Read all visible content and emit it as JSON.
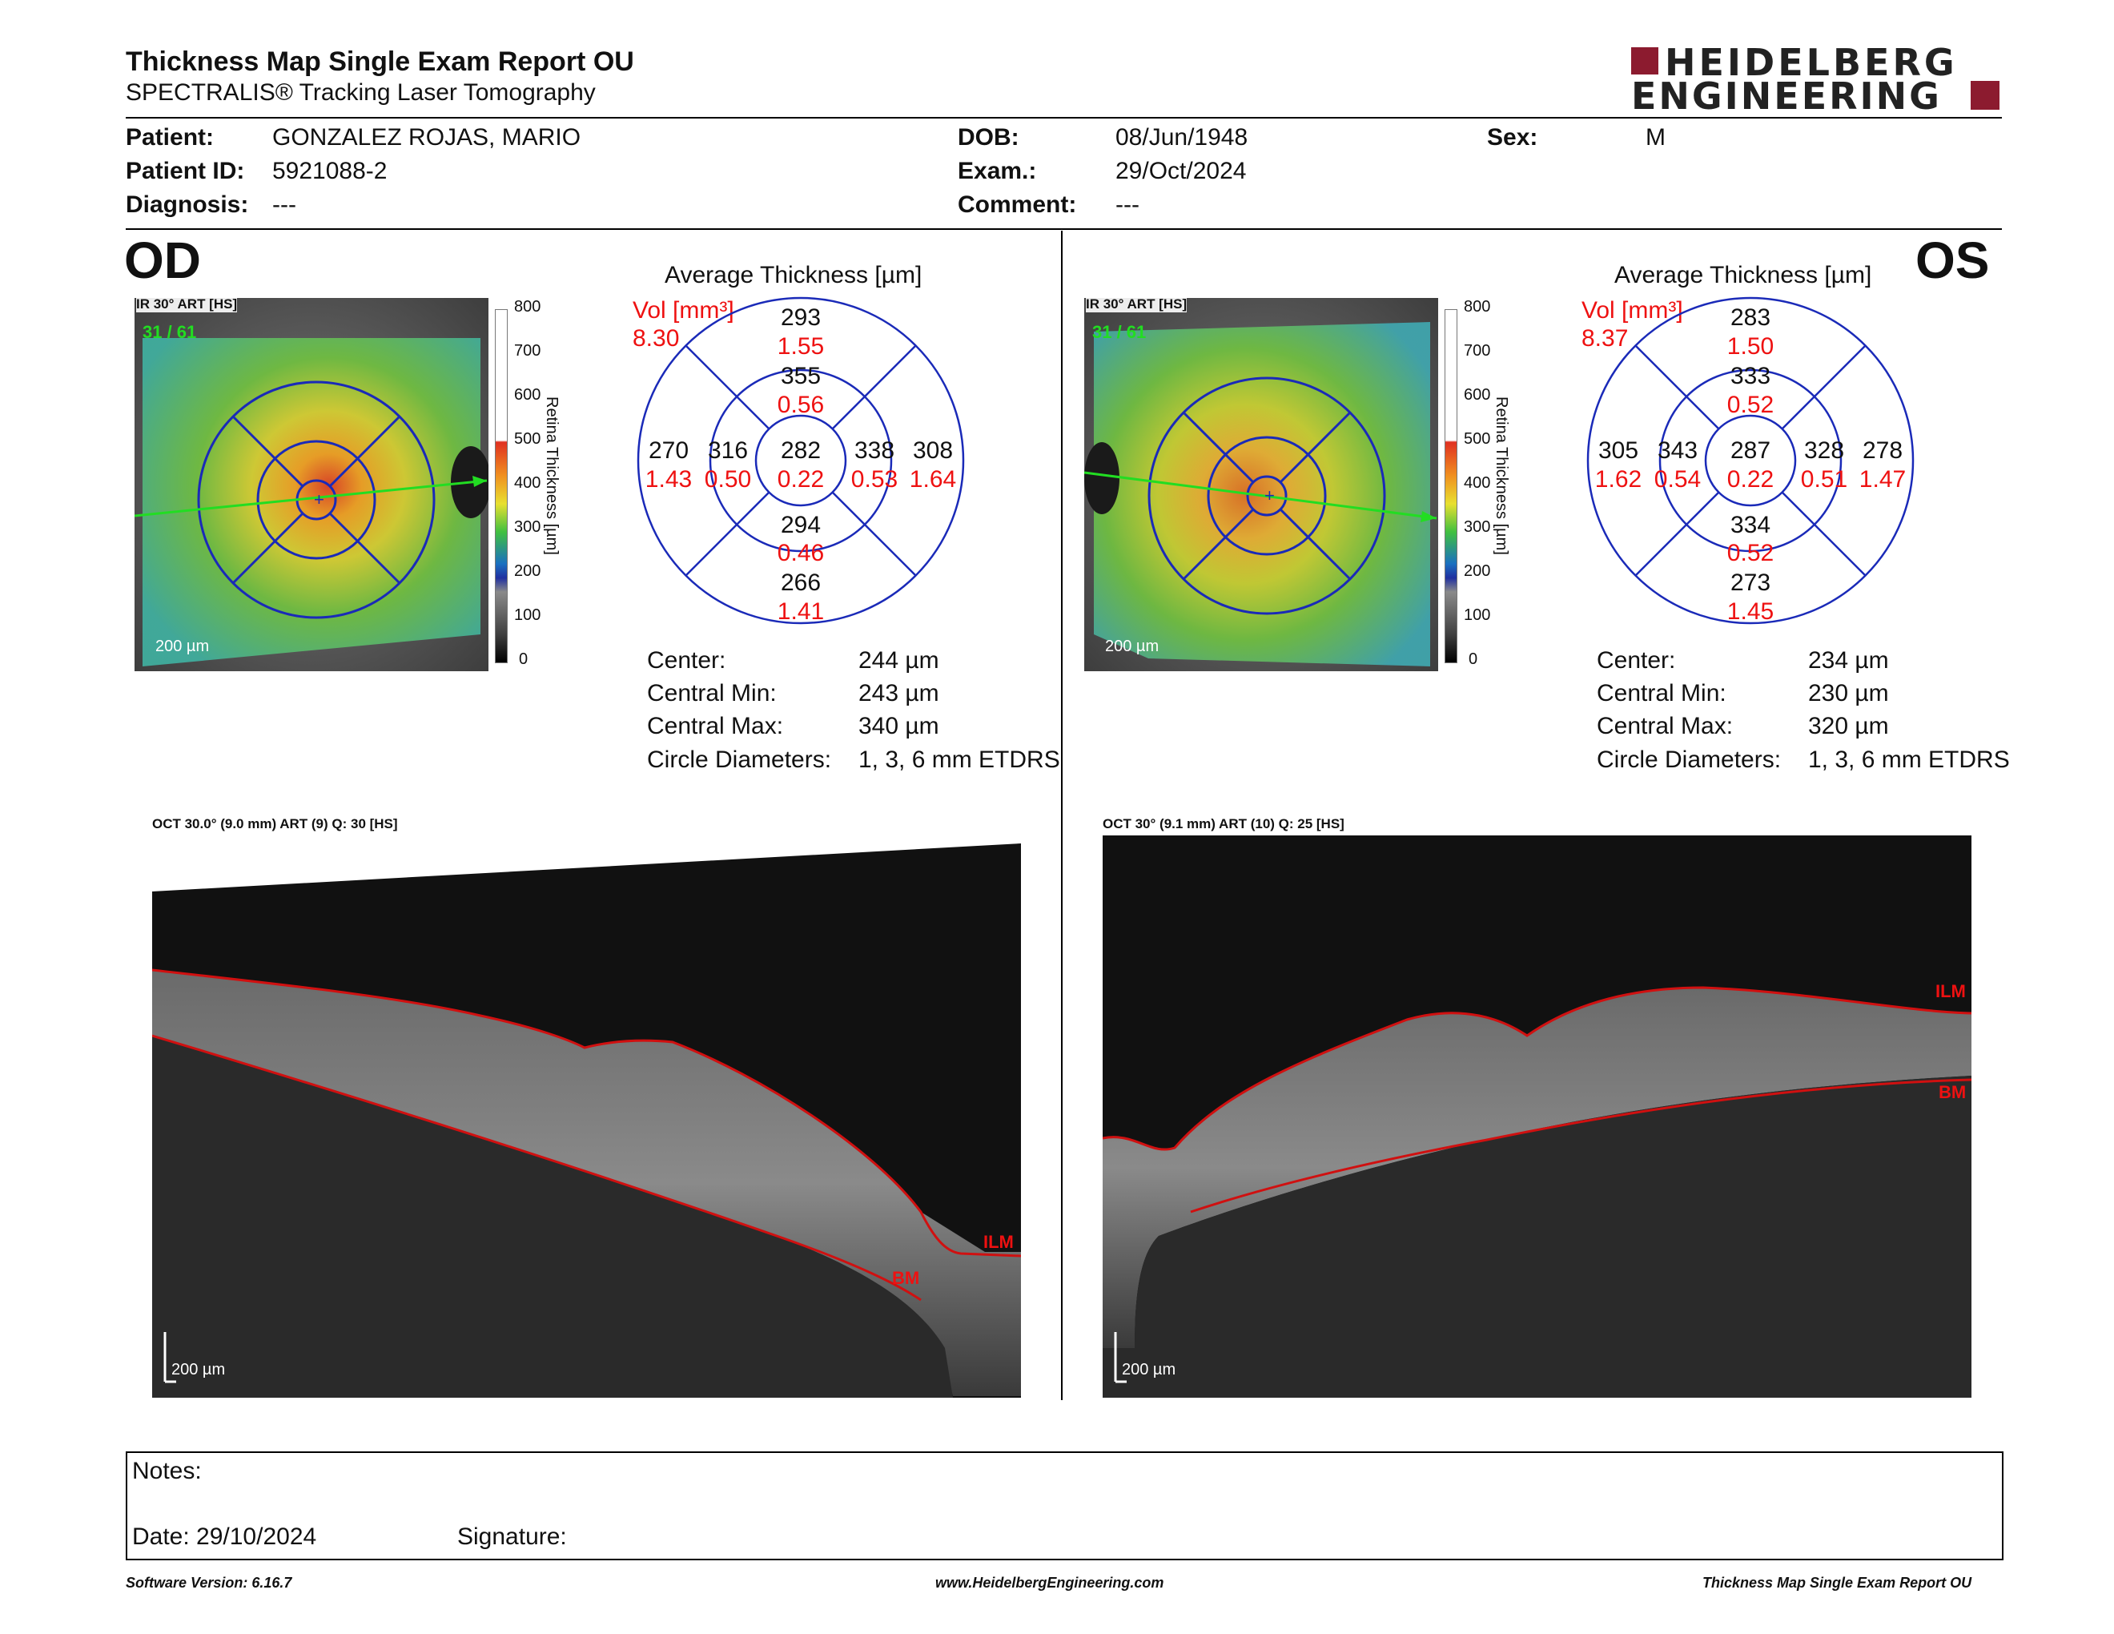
{
  "header": {
    "title": "Thickness Map Single Exam Report OU",
    "subtitle": "SPECTRALIS® Tracking Laser Tomography",
    "logo_line1": "HEIDELBERG",
    "logo_line2": "ENGINEERING"
  },
  "patient": {
    "patient_label": "Patient:",
    "patient_value": "GONZALEZ ROJAS, MARIO",
    "id_label": "Patient ID:",
    "id_value": "5921088-2",
    "diagnosis_label": "Diagnosis:",
    "diagnosis_value": "---",
    "dob_label": "DOB:",
    "dob_value": "08/Jun/1948",
    "exam_label": "Exam.:",
    "exam_value": "29/Oct/2024",
    "comment_label": "Comment:",
    "comment_value": "---",
    "sex_label": "Sex:",
    "sex_value": "M"
  },
  "scale": {
    "ticks": [
      "800",
      "700",
      "600",
      "500",
      "400",
      "300",
      "200",
      "100",
      "0"
    ],
    "axis_label": "Retina Thickness [µm]"
  },
  "od": {
    "eye": "OD",
    "ir_label": "IR 30° ART [HS]",
    "ir_frames": "31 / 61",
    "ir_scale": "200 µm",
    "avg_title": "Average Thickness [µm]",
    "vol_label": "Vol [mm³]",
    "vol_total": "8.30",
    "etdrs": {
      "outer_sup": "293",
      "outer_sup_vol": "1.55",
      "inner_sup": "355",
      "inner_sup_vol": "0.56",
      "outer_temp": "270",
      "outer_temp_vol": "1.43",
      "inner_temp": "316",
      "inner_temp_vol": "0.50",
      "center": "282",
      "center_vol": "0.22",
      "inner_nasal": "338",
      "inner_nasal_vol": "0.53",
      "outer_nasal": "308",
      "outer_nasal_vol": "1.64",
      "inner_inf": "294",
      "inner_inf_vol": "0.46",
      "outer_inf": "266",
      "outer_inf_vol": "1.41"
    },
    "stats": {
      "center_label": "Center:",
      "center_value": "244 µm",
      "min_label": "Central Min:",
      "min_value": "243 µm",
      "max_label": "Central Max:",
      "max_value": "340 µm",
      "diam_label": "Circle Diameters:",
      "diam_value": "1, 3, 6 mm ETDRS"
    },
    "oct_label": "OCT 30.0° (9.0 mm) ART (9) Q: 30 [HS]",
    "oct_scale": "200 µm",
    "ilm": "ILM",
    "bm": "BM"
  },
  "os": {
    "eye": "OS",
    "ir_label": "IR 30° ART [HS]",
    "ir_frames": "31 / 61",
    "ir_scale": "200 µm",
    "avg_title": "Average Thickness [µm]",
    "vol_label": "Vol [mm³]",
    "vol_total": "8.37",
    "etdrs": {
      "outer_sup": "283",
      "outer_sup_vol": "1.50",
      "inner_sup": "333",
      "inner_sup_vol": "0.52",
      "outer_temp": "305",
      "outer_temp_vol": "1.62",
      "inner_temp": "343",
      "inner_temp_vol": "0.54",
      "center": "287",
      "center_vol": "0.22",
      "inner_nasal": "328",
      "inner_nasal_vol": "0.51",
      "outer_nasal": "278",
      "outer_nasal_vol": "1.47",
      "inner_inf": "334",
      "inner_inf_vol": "0.52",
      "outer_inf": "273",
      "outer_inf_vol": "1.45"
    },
    "stats": {
      "center_label": "Center:",
      "center_value": "234 µm",
      "min_label": "Central Min:",
      "min_value": "230 µm",
      "max_label": "Central Max:",
      "max_value": "320 µm",
      "diam_label": "Circle Diameters:",
      "diam_value": "1, 3, 6 mm ETDRS"
    },
    "oct_label": "OCT 30° (9.1 mm) ART (10) Q: 25 [HS]",
    "oct_scale": "200 µm",
    "ilm": "ILM",
    "bm": "BM"
  },
  "notes": {
    "notes_label": "Notes:",
    "date_label": "Date: 29/10/2024",
    "signature_label": "Signature:"
  },
  "footer": {
    "version": "Software Version: 6.16.7",
    "url": "www.HeidelbergEngineering.com",
    "report": "Thickness Map Single Exam Report OU"
  },
  "colors": {
    "logo_red": "#8c1b2f",
    "vol_red": "#ee1111",
    "etdrs_blue": "#1a2ab8",
    "seg_red": "#d01010",
    "scan_green": "#22dd22"
  }
}
